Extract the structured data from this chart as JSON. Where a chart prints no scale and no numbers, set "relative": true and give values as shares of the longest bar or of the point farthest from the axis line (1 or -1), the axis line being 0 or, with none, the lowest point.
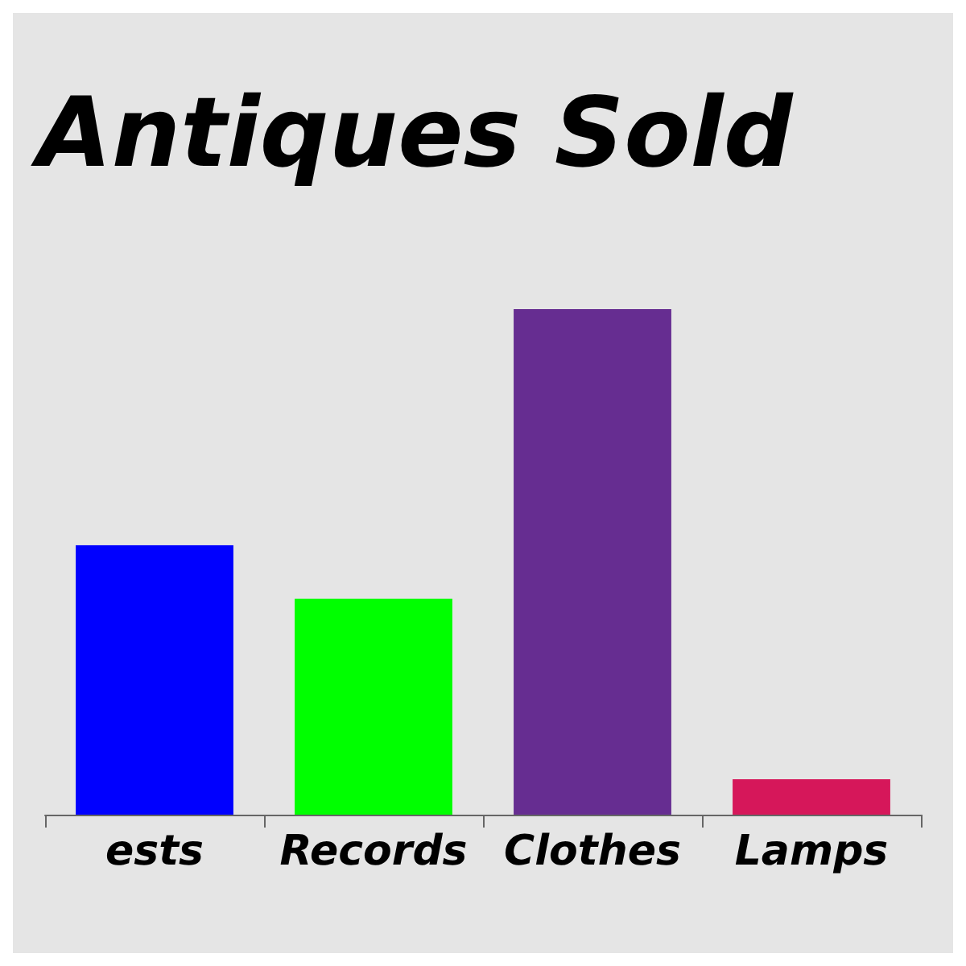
{
  "chart_data": {
    "type": "bar",
    "title": "Antiques Sold",
    "relative": true,
    "categories": [
      "ests",
      "Records",
      "Clothes",
      "Lamps"
    ],
    "values": [
      0.533,
      0.427,
      1,
      0.07
    ],
    "colors": [
      "#0000ff",
      "#00ff00",
      "#662d91",
      "#d6175a"
    ]
  }
}
